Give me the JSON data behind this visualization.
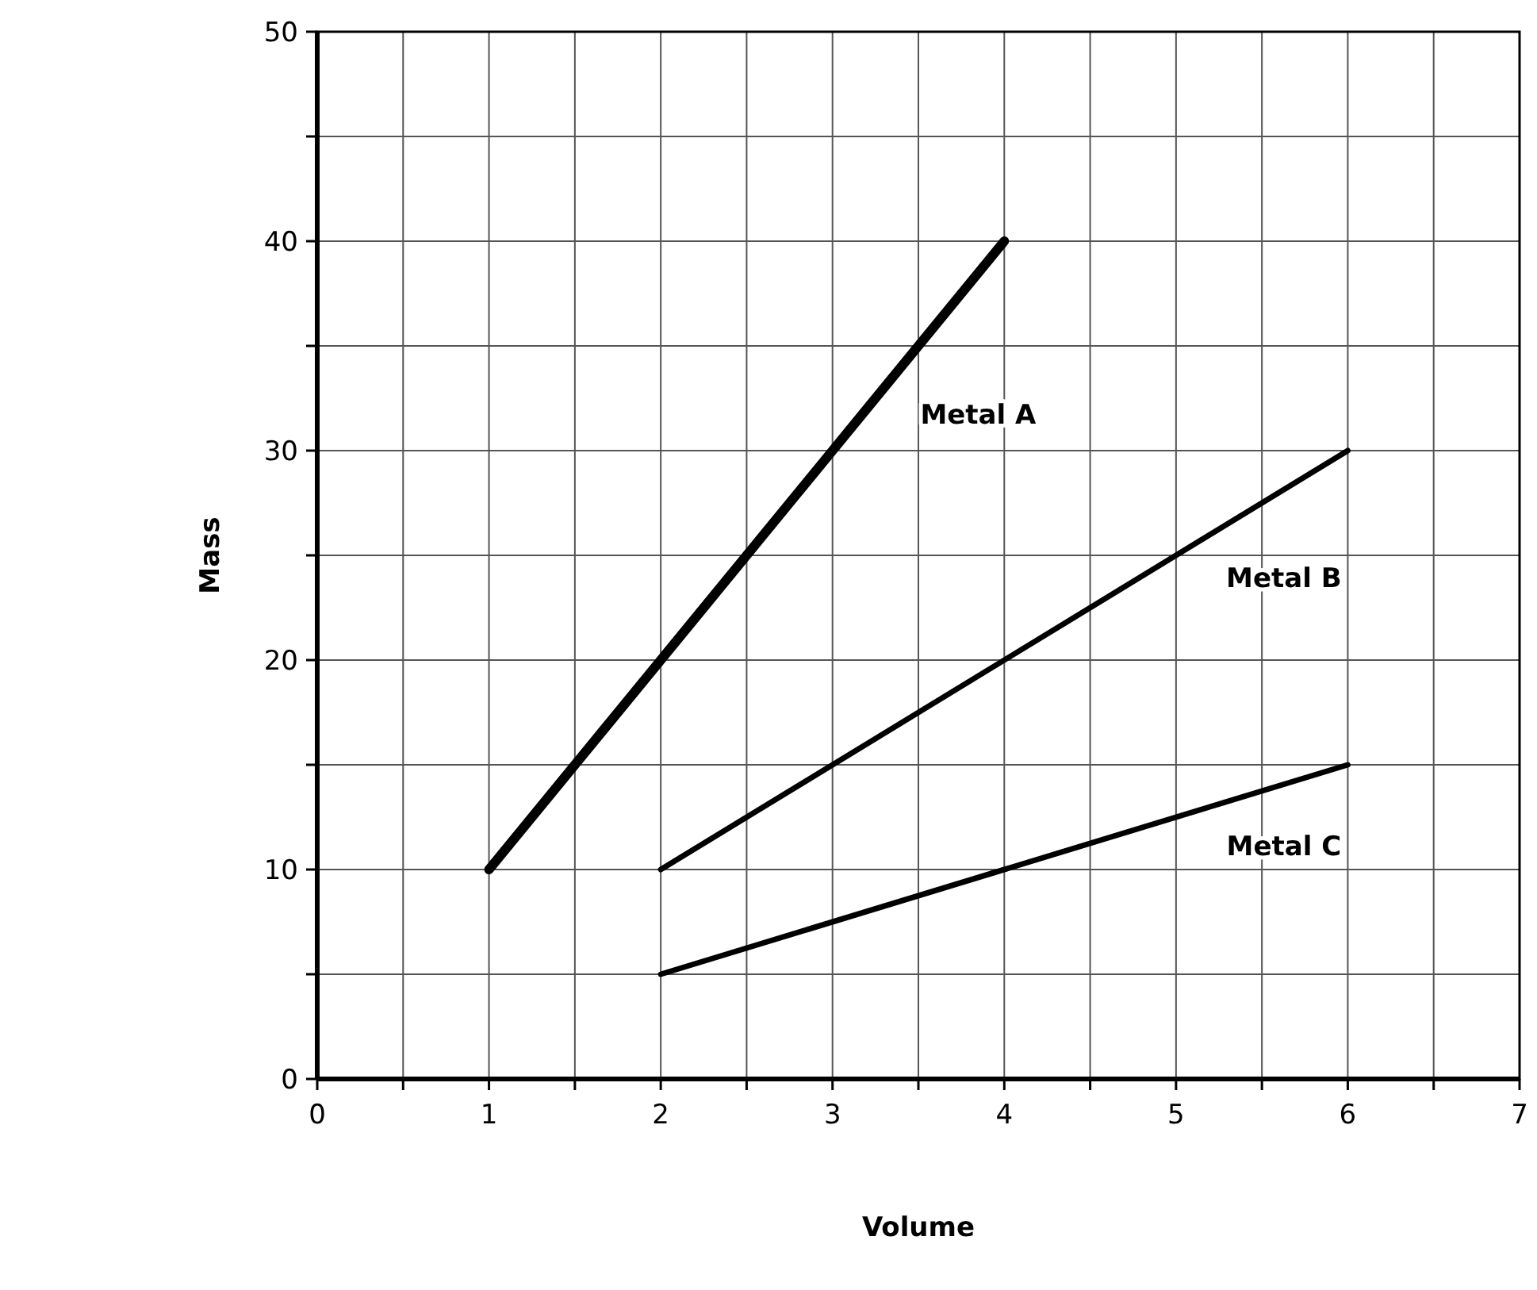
{
  "chart_data": {
    "type": "line",
    "xlabel": "Volume",
    "ylabel": "Mass",
    "xlim": [
      0,
      7
    ],
    "ylim": [
      0,
      50
    ],
    "xticks": [
      0,
      {
        "value": 0.5,
        "label": null
      },
      1,
      {
        "value": 1.5,
        "label": null
      },
      2,
      {
        "value": 2.5,
        "label": null
      },
      3,
      {
        "value": 3.5,
        "label": null
      },
      4,
      {
        "value": 4.5,
        "label": null
      },
      5,
      {
        "value": 5.5,
        "label": null
      },
      6,
      {
        "value": 6.5,
        "label": null
      },
      7
    ],
    "yticks": [
      0,
      {
        "value": 5,
        "label": null
      },
      10,
      {
        "value": 15,
        "label": null
      },
      20,
      {
        "value": 25,
        "label": null
      },
      30,
      {
        "value": 35,
        "label": null
      },
      40,
      {
        "value": 45,
        "label": null
      },
      50
    ],
    "grid": true,
    "marker": "none",
    "line_style": "solid",
    "series": [
      {
        "name": "Metal A",
        "color": "#000000",
        "x": [
          1,
          4
        ],
        "values": [
          10,
          40
        ]
      },
      {
        "name": "Metal B",
        "color": "#000000",
        "x": [
          2,
          6
        ],
        "values": [
          10,
          30
        ]
      },
      {
        "name": "Metal C",
        "color": "#000000",
        "x": [
          2,
          6
        ],
        "values": [
          5,
          15
        ]
      }
    ]
  }
}
